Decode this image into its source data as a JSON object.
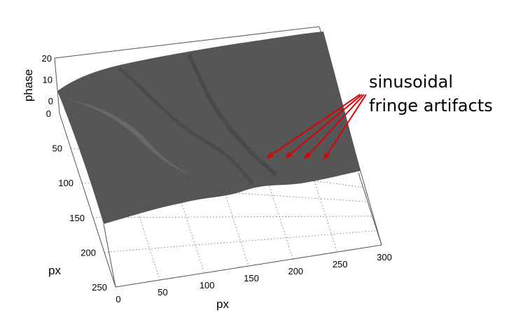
{
  "chart_data": {
    "type": "surface",
    "xlabel": "px",
    "ylabel": "px",
    "zlabel": "phase",
    "x_ticks": [
      "0",
      "50",
      "100",
      "150",
      "200",
      "250",
      "300"
    ],
    "y_ticks": [
      "0",
      "50",
      "100",
      "150",
      "200",
      "250"
    ],
    "z_ticks": [
      "0",
      "10",
      "20"
    ],
    "xlim": [
      0,
      300
    ],
    "ylim": [
      0,
      250
    ],
    "zlim": [
      0,
      20
    ],
    "grid": true,
    "surface_color": "#5a5a5a",
    "arrow_color": "#e00000",
    "annotation": {
      "line1": "sinusoidal",
      "line2": "fringe artifacts",
      "arrow_count": 4
    }
  }
}
